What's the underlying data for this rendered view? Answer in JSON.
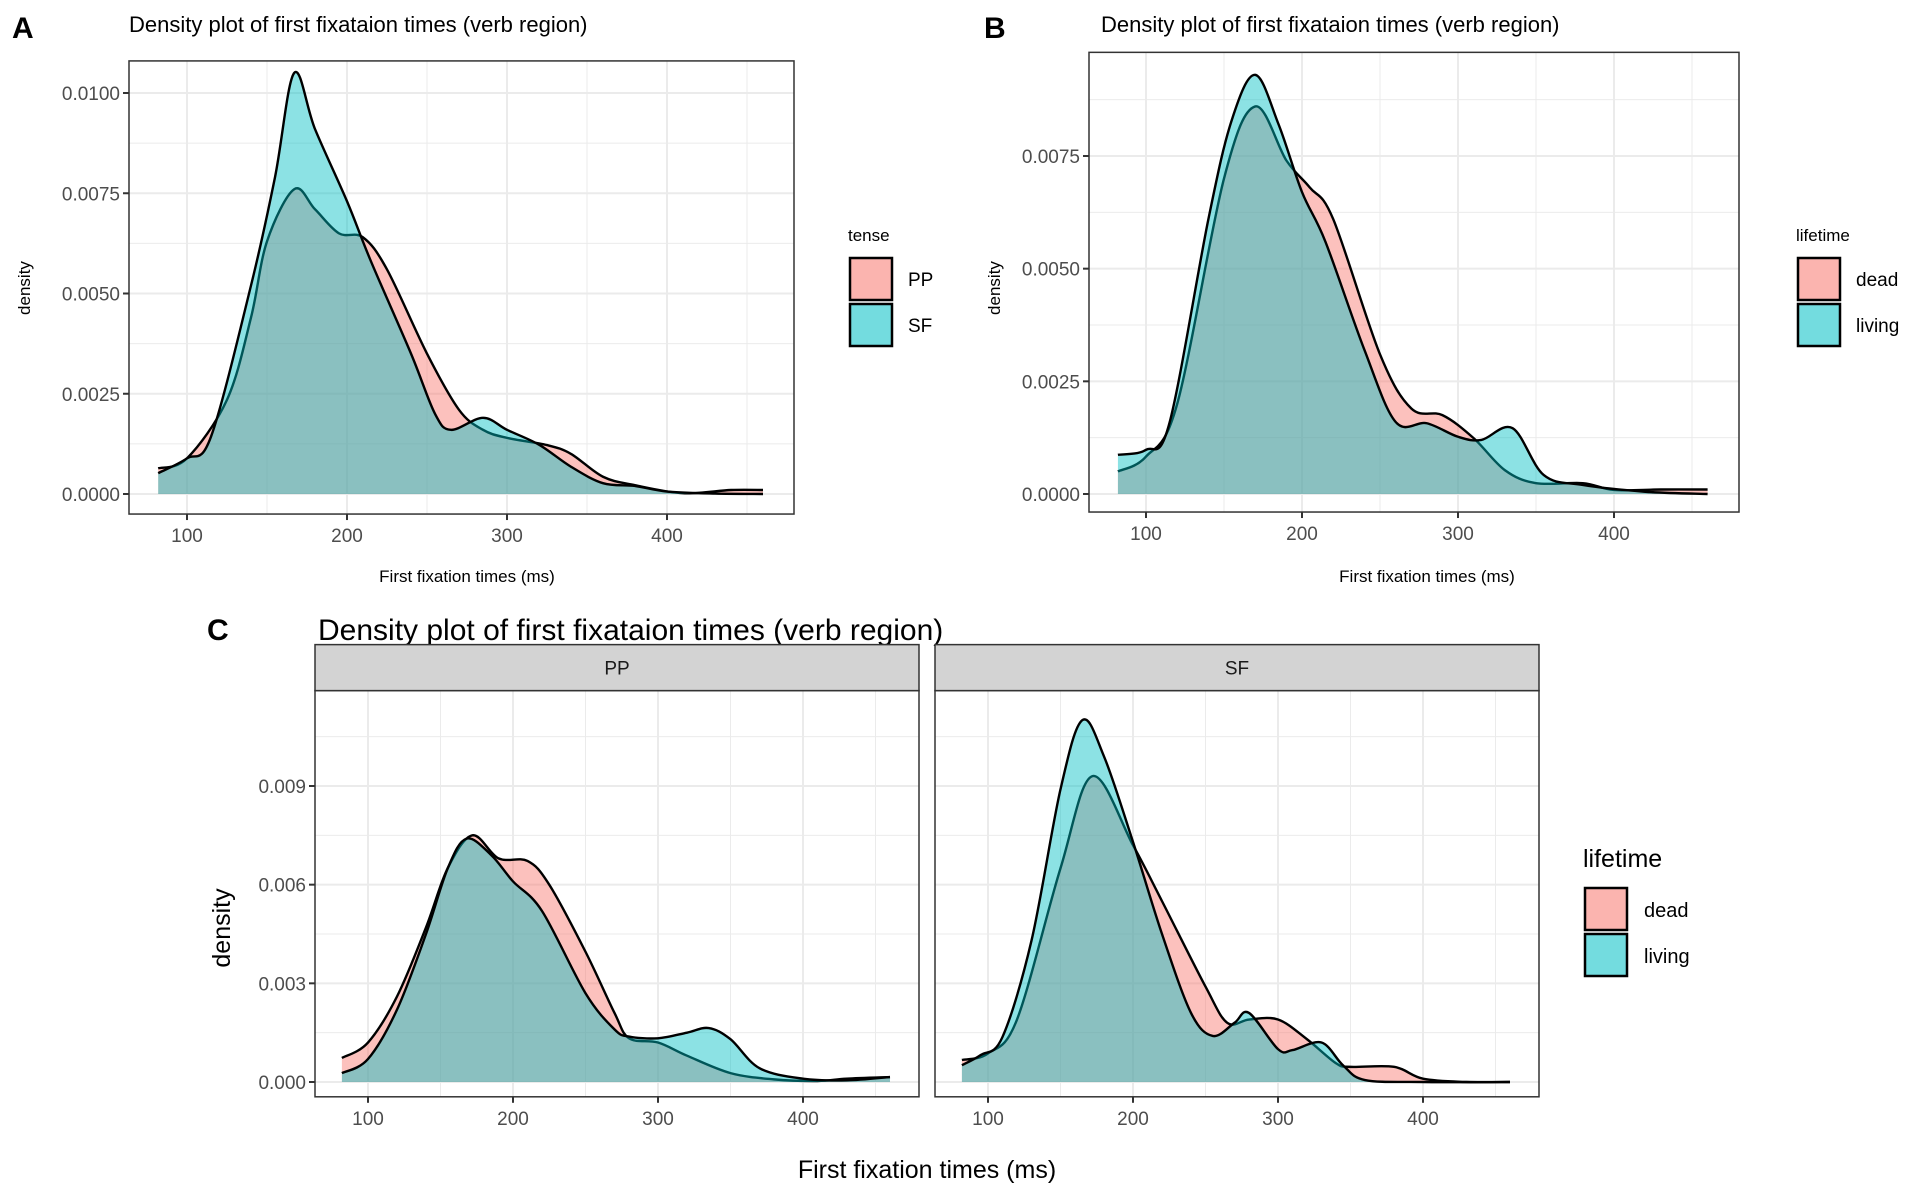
{
  "colors": {
    "dead_fill": "#F8766D",
    "living_fill": "#00BFC4",
    "fill_alpha": 0.45,
    "strip_bg": "#d3d3d3",
    "outline": "#000000"
  },
  "chart_data": [
    {
      "panel": "A",
      "type": "area",
      "title": "Density plot of first fixataion times (verb region)",
      "xlabel": "First fixation times (ms)",
      "ylabel": "density",
      "xlim": [
        65,
        480
      ],
      "ylim": [
        -0.0005,
        0.0108
      ],
      "xticks": [
        100,
        200,
        300,
        400
      ],
      "xtick_labels": [
        "100",
        "200",
        "300",
        "400"
      ],
      "yticks": [
        0,
        0.0025,
        0.005,
        0.0075,
        0.01
      ],
      "ytick_labels": [
        "0.0000",
        "0.0025",
        "0.0050",
        "0.0075",
        "0.0100"
      ],
      "grid": true,
      "legend": {
        "title": "tense",
        "position": "right",
        "entries": [
          "PP",
          "SF"
        ]
      },
      "series": [
        {
          "name": "PP",
          "color_key": "dead_fill",
          "x": [
            82,
            100,
            125,
            140,
            150,
            167,
            180,
            195,
            210,
            225,
            250,
            270,
            285,
            300,
            325,
            340,
            360,
            380,
            410,
            440,
            460
          ],
          "y": [
            0.00064,
            0.00089,
            0.00235,
            0.0044,
            0.0063,
            0.0076,
            0.0071,
            0.0065,
            0.0064,
            0.0056,
            0.0035,
            0.0021,
            0.0016,
            0.0014,
            0.00122,
            0.001,
            0.00043,
            0.00022,
            2e-05,
            0.0001,
            0.0001
          ]
        },
        {
          "name": "SF",
          "color_key": "living_fill",
          "x": [
            82,
            100,
            115,
            140,
            155,
            167,
            180,
            200,
            215,
            240,
            255,
            265,
            285,
            300,
            320,
            340,
            360,
            380,
            400,
            430,
            460
          ],
          "y": [
            0.00052,
            0.00089,
            0.00143,
            0.0052,
            0.0079,
            0.0105,
            0.0091,
            0.0073,
            0.0058,
            0.0035,
            0.002,
            0.0016,
            0.0019,
            0.0016,
            0.00123,
            0.00068,
            0.00027,
            0.0002,
            6e-05,
            1e-05,
            0.0
          ]
        }
      ]
    },
    {
      "panel": "B",
      "type": "area",
      "title": "Density plot of first fixataion times (verb region)",
      "xlabel": "First fixation times (ms)",
      "ylabel": "density",
      "xlim": [
        65,
        480
      ],
      "ylim": [
        -0.0004,
        0.0098
      ],
      "xticks": [
        100,
        200,
        300,
        400
      ],
      "xtick_labels": [
        "100",
        "200",
        "300",
        "400"
      ],
      "yticks": [
        0,
        0.0025,
        0.005,
        0.0075
      ],
      "ytick_labels": [
        "0.0000",
        "0.0025",
        "0.0050",
        "0.0075"
      ],
      "grid": true,
      "legend": {
        "title": "lifetime",
        "position": "right",
        "entries": [
          "dead",
          "living"
        ]
      },
      "series": [
        {
          "name": "dead",
          "color_key": "dead_fill",
          "x": [
            82,
            100,
            120,
            150,
            170,
            190,
            205,
            220,
            250,
            270,
            290,
            310,
            330,
            350,
            380,
            400,
            430,
            460
          ],
          "y": [
            0.0005,
            0.00083,
            0.002,
            0.007,
            0.0086,
            0.0074,
            0.0068,
            0.0061,
            0.0031,
            0.0019,
            0.00175,
            0.00124,
            0.00053,
            0.00024,
            0.00024,
            9e-05,
            0.0001,
            0.0001
          ]
        },
        {
          "name": "living",
          "color_key": "living_fill",
          "x": [
            82,
            100,
            115,
            140,
            155,
            170,
            185,
            200,
            215,
            240,
            260,
            280,
            300,
            315,
            335,
            355,
            380,
            420,
            460
          ],
          "y": [
            0.00087,
            0.00098,
            0.00157,
            0.0061,
            0.0083,
            0.0093,
            0.0082,
            0.0067,
            0.0056,
            0.0032,
            0.0016,
            0.00157,
            0.00127,
            0.0012,
            0.00146,
            0.00042,
            0.0002,
            5e-05,
            0.0
          ]
        }
      ]
    },
    {
      "panel": "C",
      "type": "area",
      "title": "Density plot of first fixataion times (verb region)",
      "xlabel": "First fixation times (ms)",
      "ylabel": "density",
      "xlim": [
        65,
        480
      ],
      "ylim": [
        -0.00045,
        0.0119
      ],
      "xticks": [
        100,
        200,
        300,
        400
      ],
      "xtick_labels": [
        "100",
        "200",
        "300",
        "400"
      ],
      "yticks": [
        0,
        0.003,
        0.006,
        0.009
      ],
      "ytick_labels": [
        "0.000",
        "0.003",
        "0.006",
        "0.009"
      ],
      "grid": true,
      "legend": {
        "title": "lifetime",
        "position": "right",
        "entries": [
          "dead",
          "living"
        ]
      },
      "facets": [
        {
          "strip": "PP",
          "series": [
            {
              "name": "dead",
              "color_key": "dead_fill",
              "x": [
                82,
                100,
                120,
                140,
                155,
                172,
                190,
                210,
                225,
                250,
                270,
                280,
                300,
                320,
                350,
                380,
                410,
                430,
                460
              ],
              "y": [
                0.00073,
                0.0012,
                0.0026,
                0.0047,
                0.0065,
                0.0075,
                0.0068,
                0.00672,
                0.006,
                0.00396,
                0.0021,
                0.00133,
                0.0012,
                0.0008,
                0.00027,
                8e-05,
                3e-05,
                0.0001,
                0.00015
              ]
            },
            {
              "name": "living",
              "color_key": "living_fill",
              "x": [
                82,
                100,
                120,
                140,
                155,
                168,
                185,
                200,
                220,
                250,
                270,
                280,
                300,
                320,
                335,
                350,
                370,
                400,
                430,
                460
              ],
              "y": [
                0.00027,
                0.0007,
                0.0022,
                0.0045,
                0.0065,
                0.0074,
                0.0069,
                0.0061,
                0.0052,
                0.0027,
                0.0016,
                0.00138,
                0.00133,
                0.0015,
                0.00164,
                0.0013,
                0.00042,
                0.0001,
                5e-05,
                0.00015
              ]
            }
          ]
        },
        {
          "strip": "SF",
          "series": [
            {
              "name": "dead",
              "color_key": "dead_fill",
              "x": [
                82,
                100,
                120,
                150,
                172,
                200,
                220,
                250,
                265,
                280,
                300,
                320,
                340,
                350,
                380,
                400,
                430,
                460
              ],
              "y": [
                0.00067,
                0.00087,
                0.0019,
                0.0065,
                0.0093,
                0.0072,
                0.0055,
                0.0029,
                0.0018,
                0.0019,
                0.0019,
                0.0013,
                0.00057,
                0.00046,
                0.00046,
                0.0001,
                0.0,
                0.0
              ]
            },
            {
              "name": "living",
              "color_key": "living_fill",
              "x": [
                82,
                95,
                110,
                130,
                150,
                165,
                180,
                200,
                220,
                240,
                255,
                270,
                280,
                300,
                310,
                330,
                345,
                360,
                400,
                460
              ],
              "y": [
                0.00051,
                0.00082,
                0.00137,
                0.0043,
                0.0089,
                0.011,
                0.0099,
                0.0073,
                0.0045,
                0.0021,
                0.0014,
                0.0018,
                0.0021,
                0.001,
                0.00097,
                0.0012,
                0.0005,
                6e-05,
                0.0,
                0.0
              ]
            }
          ]
        }
      ]
    }
  ],
  "labels": {
    "panel_a": "A",
    "panel_b": "B",
    "panel_c": "C"
  }
}
